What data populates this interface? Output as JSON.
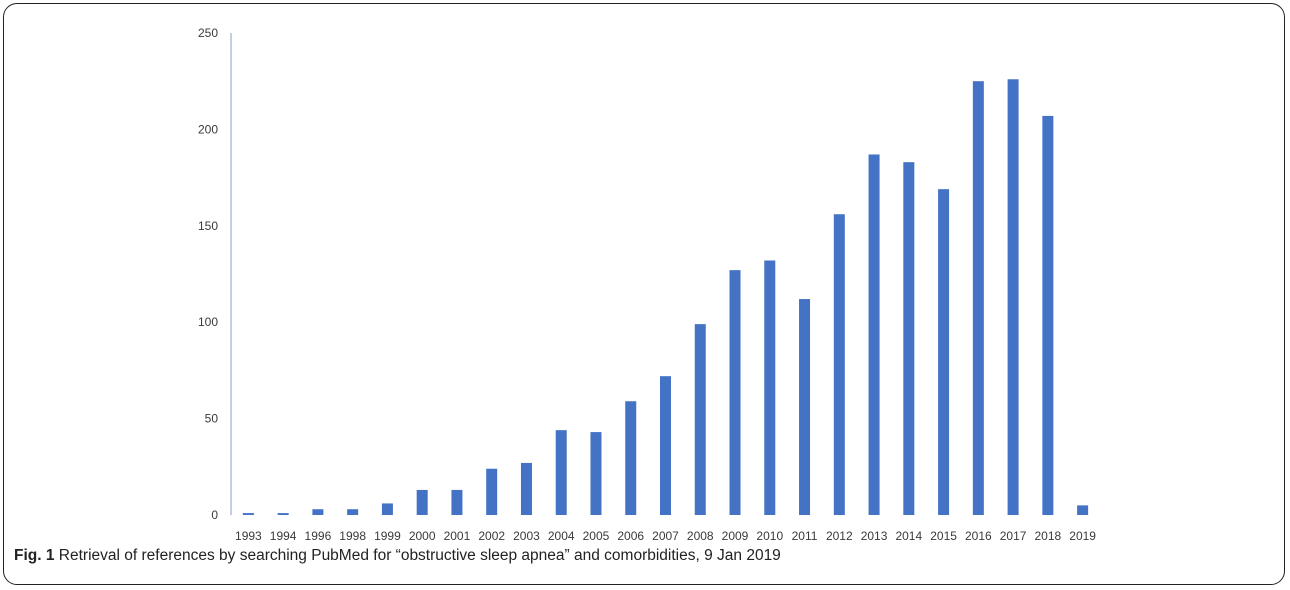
{
  "figure": {
    "label": "Fig. 1",
    "caption": "Retrieval of references by searching PubMed for “obstructive sleep apnea” and comorbidities, 9 Jan 2019"
  },
  "colors": {
    "bar": "#4472C4",
    "axis": "#7f9fd0"
  },
  "chart_data": {
    "type": "bar",
    "categories": [
      "1993",
      "1994",
      "1996",
      "1998",
      "1999",
      "2000",
      "2001",
      "2002",
      "2003",
      "2004",
      "2005",
      "2006",
      "2007",
      "2008",
      "2009",
      "2010",
      "2011",
      "2012",
      "2013",
      "2014",
      "2015",
      "2016",
      "2017",
      "2018",
      "2019"
    ],
    "values": [
      1,
      1,
      3,
      3,
      6,
      13,
      13,
      24,
      27,
      44,
      43,
      59,
      72,
      99,
      127,
      132,
      112,
      156,
      187,
      183,
      169,
      225,
      226,
      207,
      5
    ],
    "title": "",
    "xlabel": "",
    "ylabel": "",
    "ylim": [
      0,
      250
    ],
    "yticks": [
      0,
      50,
      100,
      150,
      200,
      250
    ],
    "grid": false,
    "legend": "none"
  }
}
